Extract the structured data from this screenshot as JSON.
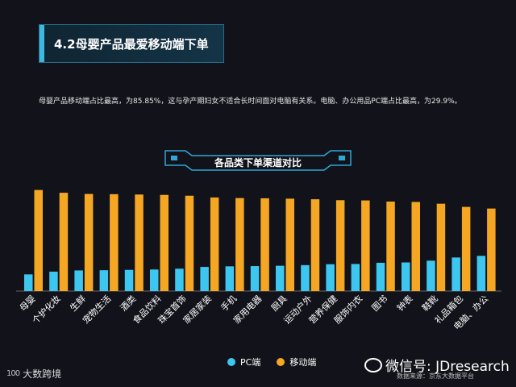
{
  "header": {
    "title": "4.2母婴产品最爱移动端下单",
    "subtitle": "母婴产品移动端占比最高，为85.85%，这与孕产期妇女不适合长时间面对电脑有关系。电脑、办公用品PC端占比最高，为29.9%。"
  },
  "chart_data": {
    "type": "bar",
    "title": "各品类下单渠道对比",
    "categories": [
      "母婴",
      "个护化妆",
      "生鲜",
      "宠物生活",
      "酒类",
      "食品饮料",
      "珠宝首饰",
      "家居家装",
      "手机",
      "家用电器",
      "厨具",
      "运动户外",
      "营养保健",
      "服饰内衣",
      "图书",
      "钟表",
      "鞋靴",
      "礼品箱包",
      "电脑、办公"
    ],
    "series": [
      {
        "name": "PC端",
        "color": "#3dc7f0",
        "values": [
          14.15,
          16.5,
          17.5,
          17.7,
          18.0,
          18.3,
          19.0,
          20.5,
          21.0,
          21.2,
          21.5,
          22.0,
          22.8,
          23.0,
          24.0,
          24.3,
          25.8,
          28.5,
          29.9
        ]
      },
      {
        "name": "移动端",
        "color": "#f5a623",
        "values": [
          85.85,
          83.5,
          82.5,
          82.3,
          82.0,
          81.7,
          81.0,
          79.5,
          79.0,
          78.8,
          78.5,
          78.0,
          77.2,
          77.0,
          76.0,
          75.7,
          74.2,
          71.5,
          70.1
        ]
      }
    ],
    "ylim": [
      0,
      100
    ],
    "grid": false,
    "legend": "bottom"
  },
  "legend": {
    "pc": "PC端",
    "mobile": "移动端"
  },
  "footer": {
    "wechat": "微信号: JDresearch",
    "source": "数据来源：京东大数据平台",
    "brand_mark": "100",
    "brand": "大数跨境"
  },
  "colors": {
    "pc": "#3dc7f0",
    "mobile": "#f5a623",
    "accent": "#3db7e4",
    "background": "#12131a"
  }
}
